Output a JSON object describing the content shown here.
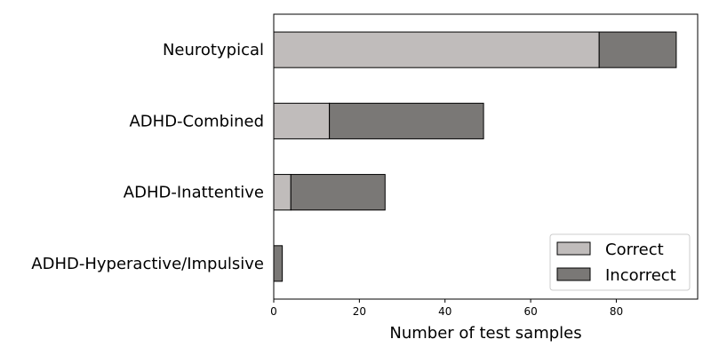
{
  "chart_data": {
    "type": "bar",
    "orientation": "horizontal",
    "stacked": true,
    "categories": [
      "Neurotypical",
      "ADHD-Combined",
      "ADHD-Inattentive",
      "ADHD-Hyperactive/Impulsive"
    ],
    "series": [
      {
        "name": "Correct",
        "values": [
          76,
          13,
          4,
          0
        ],
        "color": "#c0bcbb"
      },
      {
        "name": "Incorrect",
        "values": [
          18,
          36,
          22,
          2
        ],
        "color": "#7a7876"
      }
    ],
    "xlabel": "Number of test samples",
    "ylabel": "",
    "xlim": [
      0,
      99
    ],
    "xticks": [
      0,
      20,
      40,
      60,
      80
    ],
    "grid": false,
    "legend_position": "bottom-right"
  }
}
